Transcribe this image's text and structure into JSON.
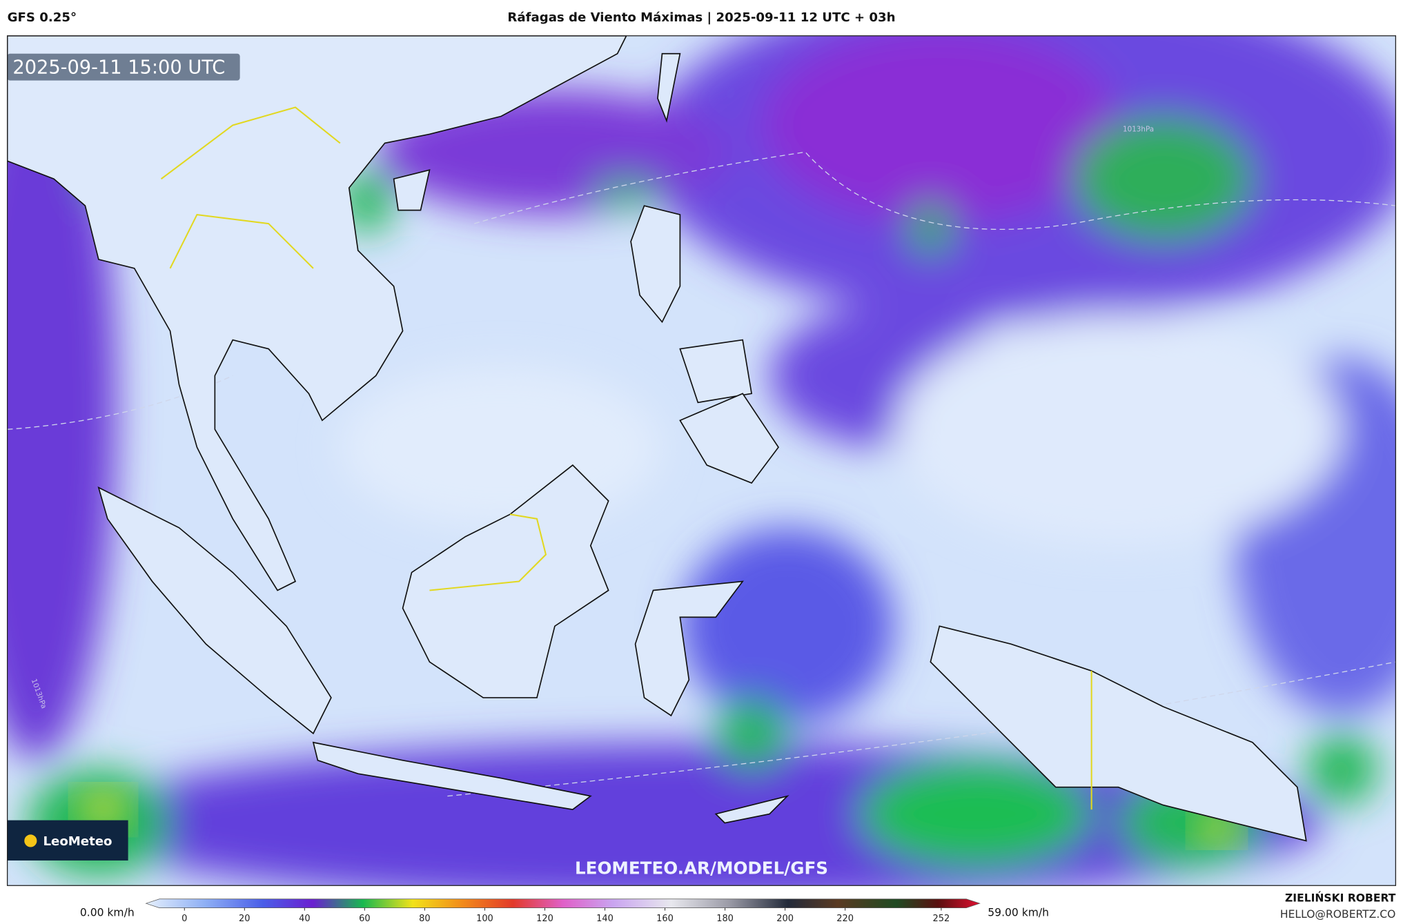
{
  "header": {
    "model": "GFS 0.25°",
    "title": "Ráfagas de Viento Máximas | 2025-09-11 12 UTC + 03h"
  },
  "map": {
    "valid_time": "2025-09-11 15:00 UTC",
    "logo": "LeoMeteo",
    "watermark": "LEOMETEO.AR/MODEL/GFS",
    "isobar_labels": [
      "1013hPa",
      "1013hPa"
    ]
  },
  "colorbar": {
    "min_label": "0.00 km/h",
    "max_label": "59.00 km/h",
    "ticks": [
      0,
      20,
      40,
      60,
      80,
      100,
      120,
      140,
      160,
      180,
      200,
      220,
      252
    ]
  },
  "credit": {
    "author": "ZIELIŃSKI ROBERT",
    "email": "HELLO@ROBERTZ.CO"
  }
}
